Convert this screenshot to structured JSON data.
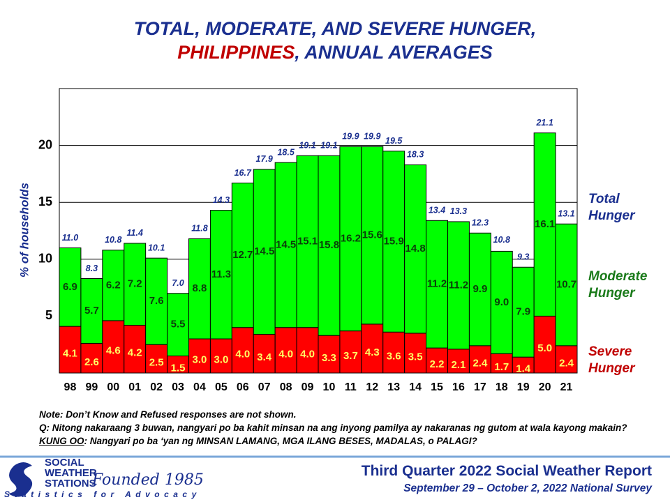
{
  "chart_data": {
    "type": "stacked_bar",
    "title_line1": "TOTAL, MODERATE, AND SEVERE HUNGER,",
    "title_highlight": "PHILIPPINES",
    "title_rest": ", ANNUAL AVERAGES",
    "y_label": "% of households",
    "categories": [
      "98",
      "99",
      "00",
      "01",
      "02",
      "03",
      "04",
      "05",
      "06",
      "07",
      "08",
      "09",
      "10",
      "11",
      "12",
      "13",
      "14",
      "15",
      "16",
      "17",
      "18",
      "19",
      "20",
      "21"
    ],
    "series": [
      {
        "name": "Severe Hunger",
        "color": "#ff0000",
        "label_color": "#ffff66",
        "values": [
          4.1,
          2.6,
          4.6,
          4.2,
          2.5,
          1.5,
          3.0,
          3.0,
          4.0,
          3.4,
          4.0,
          4.0,
          3.3,
          3.7,
          4.3,
          3.6,
          3.5,
          2.2,
          2.1,
          2.4,
          1.7,
          1.4,
          5.0,
          2.4
        ],
        "value_labels": [
          "4.1",
          "2.6",
          "4.6",
          "4.2",
          "2.5",
          "1.5",
          "3.0",
          "3.0",
          "4.0",
          "3.4",
          "4.0",
          "4.0",
          "3.3",
          "3.7",
          "4.3",
          "3.6",
          "3.5",
          "2.2",
          "2.1",
          "2.4",
          "1.7",
          "1.4",
          "5.0",
          "2.4"
        ]
      },
      {
        "name": "Moderate Hunger",
        "color": "#00ff00",
        "label_color": "#0b3d0b",
        "values": [
          6.9,
          5.7,
          6.2,
          7.2,
          7.6,
          5.5,
          8.8,
          11.3,
          12.7,
          14.5,
          14.5,
          15.1,
          15.8,
          16.2,
          15.6,
          15.9,
          14.8,
          11.2,
          11.2,
          9.9,
          9.0,
          7.9,
          16.1,
          10.7
        ],
        "value_labels": [
          "6.9",
          "5.7",
          "6.2",
          "7.2",
          "7.6",
          "5.5",
          "8.8",
          "11.3",
          "12.7",
          "14.5",
          "14.5",
          "15.1",
          "15.8",
          "16.2",
          "15.6",
          "15.9",
          "14.8",
          "11.2",
          "11.2",
          "9.9",
          "9.0",
          "7.9",
          "16.1",
          "10.7"
        ]
      }
    ],
    "total_name": "Total Hunger",
    "total_color": "#1a2f8f",
    "totals": [
      11.0,
      8.3,
      10.8,
      11.4,
      10.1,
      7.0,
      11.8,
      14.3,
      16.7,
      17.9,
      18.5,
      19.1,
      19.1,
      19.9,
      19.9,
      19.5,
      18.3,
      13.4,
      13.3,
      12.3,
      10.8,
      9.3,
      21.1,
      13.1
    ],
    "total_labels": [
      "11.0",
      "8.3",
      "10.8",
      "11.4",
      "10.1",
      "7.0",
      "11.8",
      "14.3",
      "16.7",
      "17.9",
      "18.5",
      "19.1",
      "19.1",
      "19.9",
      "19.9",
      "19.5",
      "18.3",
      "13.4",
      "13.3",
      "12.3",
      "10.8",
      "9.3",
      "21.1",
      "13.1"
    ],
    "ylim": [
      0,
      25
    ],
    "yticks": [
      5,
      10,
      15,
      20
    ],
    "grid": true,
    "note": "Note: Don’t Know and Refused responses are not shown.",
    "question_a": "Q: Nitong nakaraang 3 buwan, nangyari po ba kahit minsan na ang inyong pamilya ay nakaranas ng gutom at wala kayong makain?",
    "question_b": "KUNG OO",
    "question_c": ": Nangyari po ba ‘yan ng MINSAN LAMANG, MGA ILANG BESES, MADALAS, o PALAGI?",
    "report_title": "Third Quarter 2022 Social Weather Report",
    "report_subtitle": "September 29 – October 2, 2022 National Survey",
    "logo_text": "SOCIAL WEATHER STATIONS",
    "founded": "Founded 1985",
    "slogan": "Statistics for Advocacy"
  }
}
